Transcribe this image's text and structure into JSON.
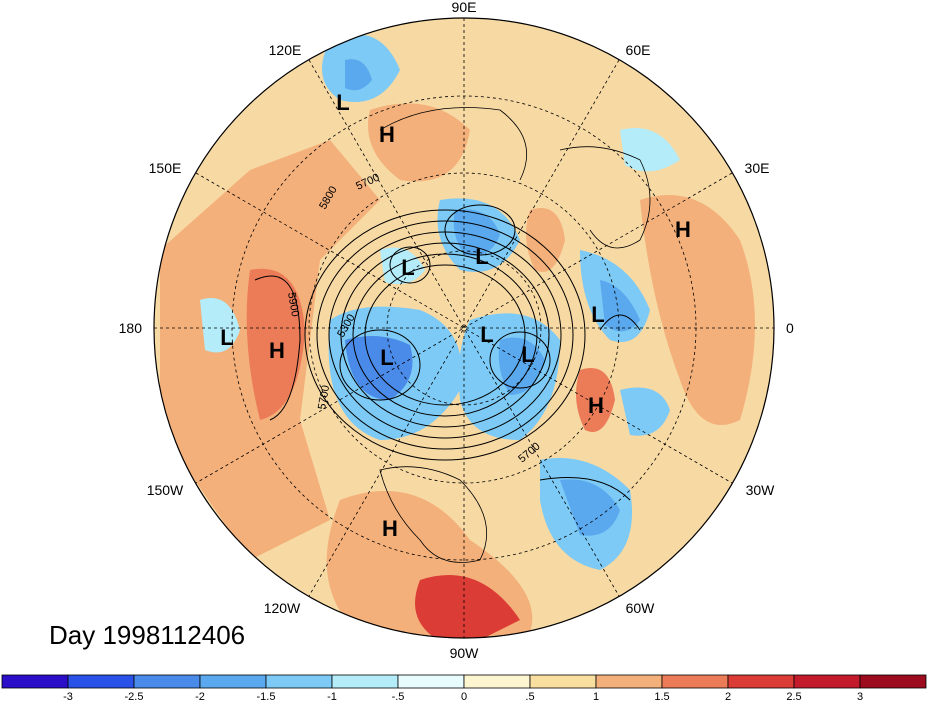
{
  "title": "Day 1998112406",
  "longitude_labels": {
    "n": "90E",
    "s": "90W",
    "e": "0",
    "w": "180",
    "ne1": "60E",
    "ne2": "30E",
    "nw1": "120E",
    "nw2": "150E",
    "se1": "30W",
    "se2": "60W",
    "sw1": "150W",
    "sw2": "120W"
  },
  "systems": [
    {
      "type": "L",
      "label": "L",
      "where": "upper-left (east Asia)"
    },
    {
      "type": "H",
      "label": "H",
      "where": "upper-left"
    },
    {
      "type": "L",
      "label": "L",
      "where": "center-left"
    },
    {
      "type": "L",
      "label": "L",
      "where": "center"
    },
    {
      "type": "L",
      "label": "L",
      "where": "west Pacific"
    },
    {
      "type": "H",
      "label": "H",
      "where": "west Pacific"
    },
    {
      "type": "L",
      "label": "L",
      "where": "pole"
    },
    {
      "type": "L",
      "label": "L",
      "where": "pole-left"
    },
    {
      "type": "L",
      "label": "L",
      "where": "pole-right"
    },
    {
      "type": "L",
      "label": "L",
      "where": "east"
    },
    {
      "type": "H",
      "label": "H",
      "where": "upper-right"
    },
    {
      "type": "H",
      "label": "H",
      "where": "lower-right"
    },
    {
      "type": "H",
      "label": "H",
      "where": "lower-left (US)"
    }
  ],
  "contour_labels": {
    "c1": "5800",
    "c2": "5700",
    "c3": "5900",
    "c4": "5300",
    "c5": "5700",
    "c6": "5700"
  },
  "colorbar": {
    "labels": [
      "-3",
      "-2.5",
      "-2",
      "-1.5",
      "-1",
      "-.5",
      "0",
      ".5",
      "1",
      "1.5",
      "2",
      "2.5",
      "3"
    ],
    "colors": [
      "#2a0ec8",
      "#2b52e8",
      "#4a8ae8",
      "#5aa8ee",
      "#7ccaf5",
      "#b4ecfa",
      "#e8fbfd",
      "#fcf5d0",
      "#f8dfa0",
      "#f4b07a",
      "#ec7c58",
      "#dc3c36",
      "#c41b2c",
      "#9c0c1e"
    ]
  }
}
